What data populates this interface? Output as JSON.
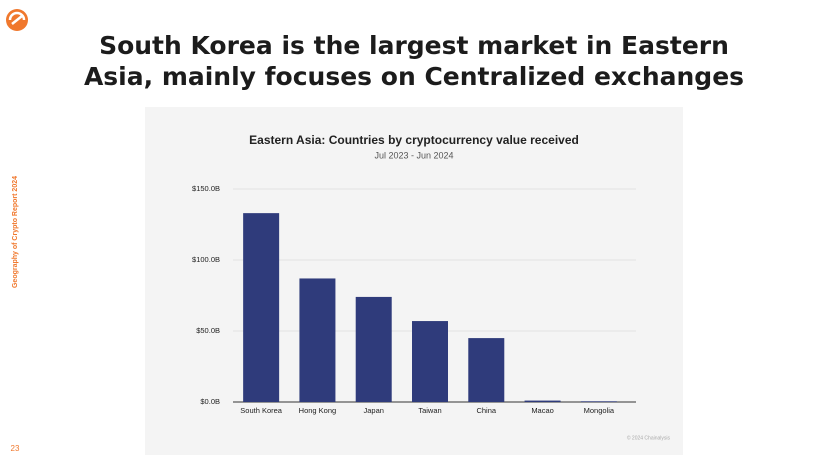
{
  "slide": {
    "title": "South Korea is the largest market in Eastern Asia, mainly focuses on Centralized exchanges",
    "side_label": "Geography of Crypto Report 2024",
    "page_number": "23",
    "watermark": "© 2024 Chainalysis"
  },
  "chart_data": {
    "type": "bar",
    "title": "Eastern Asia: Countries by cryptocurrency value received",
    "subtitle": "Jul 2023 - Jun 2024",
    "categories": [
      "South Korea",
      "Hong Kong",
      "Japan",
      "Taiwan",
      "China",
      "Macao",
      "Mongolia"
    ],
    "values": [
      133,
      87,
      74,
      57,
      45,
      1,
      0.5
    ],
    "color": "#2f3b7b",
    "ylim": [
      0,
      150
    ],
    "yticks": [
      {
        "value": 0,
        "label": "$0.0B"
      },
      {
        "value": 50,
        "label": "$50.0B"
      },
      {
        "value": 100,
        "label": "$100.0B"
      },
      {
        "value": 150,
        "label": "$150.0B"
      }
    ],
    "grid": true
  }
}
